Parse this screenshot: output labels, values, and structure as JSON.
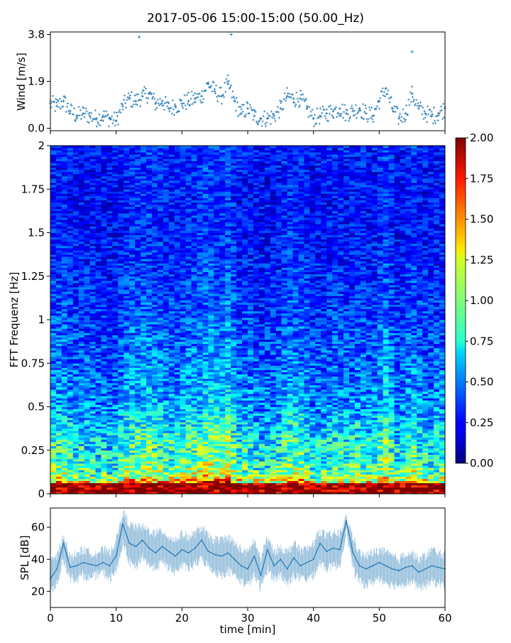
{
  "figure": {
    "title": "2017-05-06 15:00-15:00 (50.00_Hz)"
  },
  "chart_data": [
    {
      "type": "scatter",
      "panel": "wind",
      "ylabel": "Wind [m/s]",
      "xlabel": "",
      "xlim": [
        0,
        60
      ],
      "ylim": [
        -0.1,
        3.9
      ],
      "yticks": [
        "0.0",
        "1.9",
        "3.8"
      ],
      "yticks_values": [
        0.0,
        1.9,
        3.8
      ],
      "grid": false,
      "color": "#1f77b4",
      "marker": "+",
      "series": [
        {
          "x": [
            0,
            1,
            2,
            3,
            4,
            5,
            6,
            7,
            8,
            9,
            10,
            11,
            12,
            13,
            14,
            15,
            16,
            17,
            18,
            19,
            20,
            21,
            22,
            23,
            24,
            25,
            26,
            27,
            28,
            29,
            30,
            31,
            32,
            33,
            34,
            35,
            36,
            37,
            38,
            39,
            40,
            41,
            42,
            43,
            44,
            45,
            46,
            47,
            48,
            49,
            50,
            51,
            52,
            53,
            54,
            55,
            56,
            57,
            58,
            59,
            60
          ],
          "y": [
            1.0,
            0.9,
            1.1,
            0.7,
            0.5,
            0.6,
            0.5,
            0.4,
            0.5,
            0.4,
            0.3,
            0.9,
            1.2,
            1.1,
            1.3,
            1.4,
            1.0,
            1.1,
            0.8,
            0.9,
            1.0,
            1.1,
            1.2,
            1.3,
            1.8,
            1.5,
            1.3,
            1.8,
            1.1,
            0.6,
            0.8,
            0.5,
            0.4,
            0.4,
            0.5,
            0.8,
            1.3,
            1.2,
            1.2,
            0.8,
            0.4,
            0.5,
            0.6,
            0.7,
            0.8,
            0.6,
            0.7,
            0.8,
            0.6,
            0.5,
            1.1,
            1.6,
            0.8,
            0.4,
            0.6,
            1.4,
            0.8,
            0.6,
            0.5,
            0.6,
            0.8
          ]
        }
      ],
      "notable_peaks": [
        {
          "x": 13.5,
          "y": 3.7
        },
        {
          "x": 27.5,
          "y": 3.8
        },
        {
          "x": 55.0,
          "y": 3.1
        }
      ]
    },
    {
      "type": "heatmap",
      "panel": "spectrogram",
      "ylabel": "FFT Frequenz [Hz]",
      "xlabel": "",
      "xlim": [
        0,
        60
      ],
      "ylim": [
        0,
        2
      ],
      "yticks": [
        "0",
        "0.25",
        "0.5",
        "0.75",
        "1",
        "1.25",
        "1.5",
        "1.75",
        "2"
      ],
      "yticks_values": [
        0,
        0.25,
        0.5,
        0.75,
        1,
        1.25,
        1.5,
        1.75,
        2
      ],
      "colormap": "jet",
      "colorbar": {
        "range": [
          0,
          2
        ],
        "ticks": [
          "0.00",
          "0.25",
          "0.50",
          "0.75",
          "1.00",
          "1.25",
          "1.50",
          "1.75",
          "2.00"
        ],
        "ticks_values": [
          0,
          0.25,
          0.5,
          0.75,
          1.0,
          1.25,
          1.5,
          1.75,
          2.0
        ]
      },
      "description_profile": {
        "freq_hz": [
          0.0,
          0.05,
          0.1,
          0.2,
          0.3,
          0.5,
          0.75,
          1.0,
          1.25,
          1.5,
          1.75,
          2.0
        ],
        "typical_value": [
          1.9,
          1.5,
          1.0,
          0.8,
          0.75,
          0.55,
          0.45,
          0.38,
          0.32,
          0.28,
          0.27,
          0.3
        ]
      }
    },
    {
      "type": "line",
      "panel": "spl",
      "ylabel": "SPL [dB]",
      "xlabel": "time [min]",
      "xlim": [
        0,
        60
      ],
      "ylim": [
        10,
        72
      ],
      "xticks": [
        "0",
        "10",
        "20",
        "30",
        "40",
        "50",
        "60"
      ],
      "xticks_values": [
        0,
        10,
        20,
        30,
        40,
        50,
        60
      ],
      "yticks": [
        "20",
        "40",
        "60"
      ],
      "yticks_values": [
        20,
        40,
        60
      ],
      "grid": false,
      "color": "#1f77b4",
      "series": [
        {
          "x": [
            0,
            1,
            2,
            3,
            4,
            5,
            6,
            7,
            8,
            9,
            10,
            11,
            12,
            13,
            14,
            15,
            16,
            17,
            18,
            19,
            20,
            21,
            22,
            23,
            24,
            25,
            26,
            27,
            28,
            29,
            30,
            31,
            32,
            33,
            34,
            35,
            36,
            37,
            38,
            39,
            40,
            41,
            42,
            43,
            44,
            45,
            46,
            47,
            48,
            49,
            50,
            51,
            52,
            53,
            54,
            55,
            56,
            57,
            58,
            59,
            60
          ],
          "y": [
            28,
            34,
            50,
            35,
            36,
            38,
            37,
            36,
            38,
            36,
            42,
            62,
            50,
            48,
            52,
            47,
            44,
            48,
            45,
            42,
            46,
            44,
            47,
            52,
            45,
            43,
            42,
            44,
            40,
            36,
            34,
            42,
            30,
            46,
            36,
            40,
            34,
            41,
            36,
            38,
            40,
            50,
            45,
            47,
            46,
            64,
            44,
            36,
            34,
            36,
            38,
            36,
            34,
            33,
            35,
            36,
            32,
            34,
            36,
            35,
            34
          ],
          "band_low": [
            20,
            25,
            40,
            28,
            28,
            30,
            28,
            30,
            32,
            28,
            32,
            50,
            38,
            35,
            42,
            36,
            35,
            38,
            35,
            32,
            36,
            34,
            37,
            40,
            36,
            32,
            30,
            33,
            30,
            26,
            24,
            30,
            22,
            34,
            28,
            30,
            25,
            30,
            28,
            28,
            30,
            38,
            34,
            36,
            36,
            58,
            34,
            26,
            24,
            26,
            28,
            26,
            24,
            24,
            25,
            26,
            22,
            24,
            26,
            25,
            24
          ],
          "band_high": [
            38,
            42,
            56,
            40,
            44,
            46,
            44,
            44,
            46,
            44,
            52,
            69,
            62,
            60,
            60,
            58,
            56,
            58,
            54,
            52,
            56,
            54,
            56,
            60,
            54,
            52,
            52,
            54,
            50,
            46,
            44,
            52,
            40,
            54,
            44,
            48,
            44,
            50,
            46,
            46,
            50,
            58,
            54,
            56,
            56,
            66,
            54,
            44,
            42,
            44,
            46,
            44,
            42,
            40,
            44,
            44,
            40,
            42,
            46,
            44,
            42
          ]
        }
      ]
    }
  ]
}
